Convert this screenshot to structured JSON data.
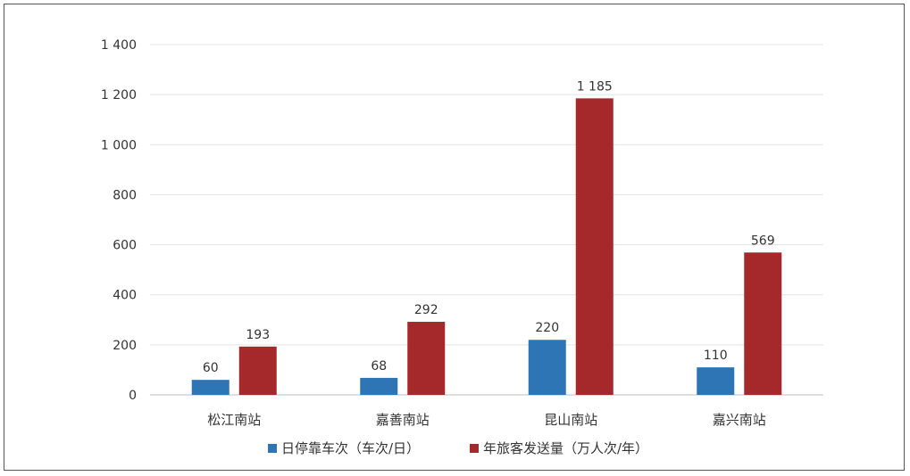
{
  "chart_data": {
    "type": "bar",
    "categories": [
      "松江南站",
      "嘉善南站",
      "昆山南站",
      "嘉兴南站"
    ],
    "series": [
      {
        "name": "日停靠车次（车次/日）",
        "values": [
          60,
          68,
          220,
          110
        ],
        "color": "#2e75b6"
      },
      {
        "name": "年旅客发送量（万人次/年）",
        "values": [
          193,
          292,
          1185,
          569
        ],
        "color": "#a5282a"
      }
    ],
    "data_labels": [
      [
        "60",
        "68",
        "220",
        "110"
      ],
      [
        "193",
        "292",
        "1 185",
        "569"
      ]
    ],
    "yticks": [
      {
        "value": 0,
        "label": "0"
      },
      {
        "value": 200,
        "label": "200"
      },
      {
        "value": 400,
        "label": "400"
      },
      {
        "value": 600,
        "label": "600"
      },
      {
        "value": 800,
        "label": "800"
      },
      {
        "value": 1000,
        "label": "1 000"
      },
      {
        "value": 1200,
        "label": "1 200"
      },
      {
        "value": 1400,
        "label": "1 400"
      }
    ],
    "ylim": [
      0,
      1400
    ],
    "grid": true,
    "legend_position": "bottom",
    "title": "",
    "xlabel": "",
    "ylabel": ""
  }
}
